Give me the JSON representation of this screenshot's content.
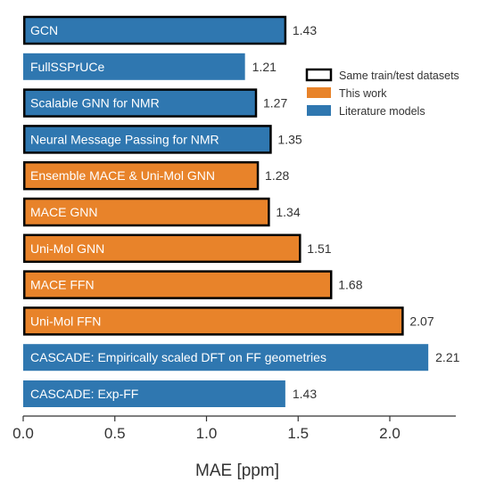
{
  "chart_data": {
    "type": "bar",
    "orientation": "horizontal",
    "xlabel": "MAE [ppm]",
    "xlim": [
      0,
      2.3
    ],
    "xticks": [
      0.0,
      0.5,
      1.0,
      1.5,
      2.0
    ],
    "xtick_labels": [
      "0.0",
      "0.5",
      "1.0",
      "1.5",
      "2.0"
    ],
    "grid": false,
    "legend": {
      "placement": "top-right",
      "entries": [
        {
          "label": "Same train/test datasets",
          "kind": "outline",
          "color": "#000000"
        },
        {
          "label": "This work",
          "kind": "fill",
          "color": "#e8832a"
        },
        {
          "label": "Literature models",
          "kind": "fill",
          "color": "#2f77b0"
        }
      ]
    },
    "bars": [
      {
        "label": "GCN",
        "value": 1.43,
        "value_label": "1.43",
        "group": "Literature models",
        "same_datasets": true
      },
      {
        "label": "FullSSPrUCe",
        "value": 1.21,
        "value_label": "1.21",
        "group": "Literature models",
        "same_datasets": false
      },
      {
        "label": "Scalable GNN for NMR",
        "value": 1.27,
        "value_label": "1.27",
        "group": "Literature models",
        "same_datasets": true
      },
      {
        "label": "Neural Message Passing for NMR",
        "value": 1.35,
        "value_label": "1.35",
        "group": "Literature models",
        "same_datasets": true
      },
      {
        "label": "Ensemble MACE & Uni-Mol GNN",
        "value": 1.28,
        "value_label": "1.28",
        "group": "This work",
        "same_datasets": true
      },
      {
        "label": "MACE GNN",
        "value": 1.34,
        "value_label": "1.34",
        "group": "This work",
        "same_datasets": true
      },
      {
        "label": "Uni-Mol GNN",
        "value": 1.51,
        "value_label": "1.51",
        "group": "This work",
        "same_datasets": true
      },
      {
        "label": "MACE FFN",
        "value": 1.68,
        "value_label": "1.68",
        "group": "This work",
        "same_datasets": true
      },
      {
        "label": "Uni-Mol FFN",
        "value": 2.07,
        "value_label": "2.07",
        "group": "This work",
        "same_datasets": true
      },
      {
        "label": "CASCADE: Empirically scaled DFT on FF geometries",
        "value": 2.21,
        "value_label": "2.21",
        "group": "Literature models",
        "same_datasets": false
      },
      {
        "label": "CASCADE: Exp-FF",
        "value": 1.43,
        "value_label": "1.43",
        "group": "Literature models",
        "same_datasets": false
      }
    ],
    "colors": {
      "This work": "#e8832a",
      "Literature models": "#2f77b0"
    }
  }
}
